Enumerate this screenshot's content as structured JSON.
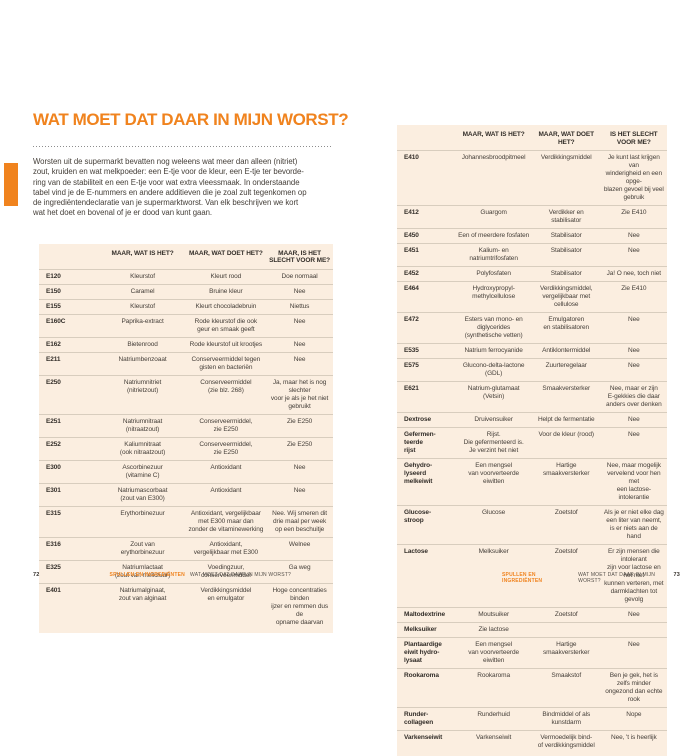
{
  "accent_color": "#f0831e",
  "table_bg_color": "#fbeee0",
  "left_page": {
    "title": "WAT MOET DAT DAAR IN MIJN WORST?",
    "intro": "Worsten uit de supermarkt bevatten nog weleens wat meer dan alleen (nitriet)\nzout, kruiden en wat melkpoeder: een E-tje voor de kleur, een E-tje ter bevorde-\nring van de stabiliteit en een E-tje voor wat extra vleessmaak. In onderstaande\ntabel vind je de E-nummers en andere additieven die je zoal zult tegenkomen op\nde ingrediëntendeclaratie van je supermarktworst. Van elk beschrijven we kort\nwat het doet en bovenal of je er dood van kunt gaan.",
    "table": {
      "headers": [
        "",
        "MAAR, WAT IS HET?",
        "MAAR, WAT DOET HET?",
        "MAAR, IS HET\nSLECHT VOOR ME?"
      ],
      "rows": [
        [
          "E120",
          "Kleurstof",
          "Kleurt rood",
          "Doe normaal"
        ],
        [
          "E150",
          "Caramel",
          "Bruine kleur",
          "Nee"
        ],
        [
          "E155",
          "Kleurstof",
          "Kleurt chocoladebruin",
          "Niettus"
        ],
        [
          "E160C",
          "Paprika-extract",
          "Rode kleurstof die ook\ngeur en smaak geeft",
          "Nee"
        ],
        [
          "E162",
          "Bietenrood",
          "Rode kleurstof uit krootjes",
          "Nee"
        ],
        [
          "E211",
          "Natriumbenzoaat",
          "Conserveermiddel tegen\ngisten en bacteriën",
          "Nee"
        ],
        [
          "E250",
          "Natriumnitriet\n(nitrietzout)",
          "Conserveermiddel\n(zie blz. 268)",
          "Ja, maar het is nog slechter\nvoor je als je het niet gebruikt"
        ],
        [
          "E251",
          "Natriumnitraat\n(nitraatzout)",
          "Conserveermiddel,\nzie E250",
          "Zie E250"
        ],
        [
          "E252",
          "Kaliumnitraat\n(ook nitraatzout)",
          "Conserveermiddel,\nzie E250",
          "Zie E250"
        ],
        [
          "E300",
          "Ascorbinezuur\n(vitamine C)",
          "Antioxidant",
          "Nee"
        ],
        [
          "E301",
          "Natriumascorbaat\n(zout van E300)",
          "Antioxidant",
          "Nee"
        ],
        [
          "E315",
          "Erythorbinezuur",
          "Antioxidant, vergelijkbaar\nmet E300 maar dan\nzonder de vitaminewerking",
          "Nee. Wij smeren dit\ndrie maal per week\nop een beschuitje"
        ],
        [
          "E316",
          "Zout van\nerythorbinezuur",
          "Antioxidant,\nvergelijkbaar met E300",
          "Welnee"
        ],
        [
          "E325",
          "Natriumlactaat\n(zout van melkzuur)",
          "Voedingzuur,\nconserveermiddel",
          "Ga weg"
        ],
        [
          "E401",
          "Natriumalginaat,\nzout van alginaat",
          "Verdikkingsmiddel\nen emulgator",
          "Hoge concentraties binden\nijzer en remmen dus de\nopname daarvan"
        ]
      ]
    },
    "footer": {
      "page_number": "72",
      "section": "SPULLEN EN INGREDIËNTEN",
      "chapter": "WAT MOET DAT DAAR IN MIJN WORST?"
    }
  },
  "right_page": {
    "table": {
      "headers": [
        "",
        "MAAR, WAT IS HET?",
        "MAAR, WAT DOET HET?",
        "IS HET SLECHT\nVOOR ME?"
      ],
      "rows": [
        [
          "E410",
          "Johannesbroodpitmeel",
          "Verdikkingsmiddel",
          "Je kunt last krijgen van\nwinderigheid en een opge-\nblazen gevoel bij veel gebruik"
        ],
        [
          "E412",
          "Guargom",
          "Verdikker en stabilisator",
          "Zie E410"
        ],
        [
          "E450",
          "Een of meerdere fosfaten",
          "Stabilisator",
          "Nee"
        ],
        [
          "E451",
          "Kalium- en natriumtrifosfaten",
          "Stabilisator",
          "Nee"
        ],
        [
          "E452",
          "Polyfosfaten",
          "Stabilisator",
          "Ja! O nee, toch niet"
        ],
        [
          "E464",
          "Hydroxypropyl-\nmethylcellulose",
          "Verdikkingsmiddel,\nvergelijkbaar met cellulose",
          "Zie E410"
        ],
        [
          "E472",
          "Esters van mono- en diglycerides\n(synthetische vetten)",
          "Emulgatoren\nen stabilisatoren",
          "Nee"
        ],
        [
          "E535",
          "Natrium ferrocyanide",
          "Antiklontermiddel",
          "Nee"
        ],
        [
          "E575",
          "Glucono-delta-lactone (GDL)",
          "Zuurteregelaar",
          "Nee"
        ],
        [
          "E621",
          "Natrium-glutamaat\n(Vetsin)",
          "Smaakversterker",
          "Nee, maar er zijn\nE-gekkies die daar\nanders over denken"
        ],
        [
          "Dextrose",
          "Druivensuiker",
          "Helpt de fermentatie",
          "Nee"
        ],
        [
          "Gefermen-\nteerde\nrijst",
          "Rijst.\nDie gefermenteerd is.\nJe verzint het niet",
          "Voor de kleur (rood)",
          "Nee"
        ],
        [
          "Gehydro-\nlyseerd\nmelkeiwit",
          "Een mengsel\nvan voorverteerde\neiwitten",
          "Hartige smaakversterker",
          "Nee, maar mogelijk\nvervelend voor hen met\neen lactose-intolerantie"
        ],
        [
          "Glucose-\nstroop",
          "Glucose",
          "Zoetstof",
          "Als je er niet elke dag\neen liter van neemt,\nis er niets aan de hand"
        ],
        [
          "Lactose",
          "Melksuiker",
          "Zoetstof",
          "Er zijn mensen die intolerant\nzijn voor lactose en het niet\nkunnen verteren, met\ndarmklachten tot gevolg"
        ],
        [
          "Maltodextrine",
          "Moutsuiker",
          "Zoetstof",
          "Nee"
        ],
        [
          "Melksuiker",
          "Zie lactose",
          "",
          ""
        ],
        [
          "Plantaardige\neiwit hydro-\nlysaat",
          "Een mengsel\nvan voorverteerde\neiwitten",
          "Hartige smaakversterker",
          "Nee"
        ],
        [
          "Rookaroma",
          "Rookaroma",
          "Smaakstof",
          "Ben je gek, het is zelfs minder\nongezond dan echte rook"
        ],
        [
          "Runder-\ncollageen",
          "Runderhuid",
          "Bindmiddel of als kunstdarm",
          "Nope"
        ],
        [
          "Varkenseiwit",
          "Varkenseiwit",
          "Vermoedelijk bind-\nof verdikkingsmiddel",
          "Nee, 't is heerlijk"
        ]
      ]
    },
    "footer": {
      "page_number": "73",
      "section": "SPULLEN EN INGREDIËNTEN",
      "chapter": "WAT MOET DAT DAAR IN MIJN WORST?"
    }
  }
}
